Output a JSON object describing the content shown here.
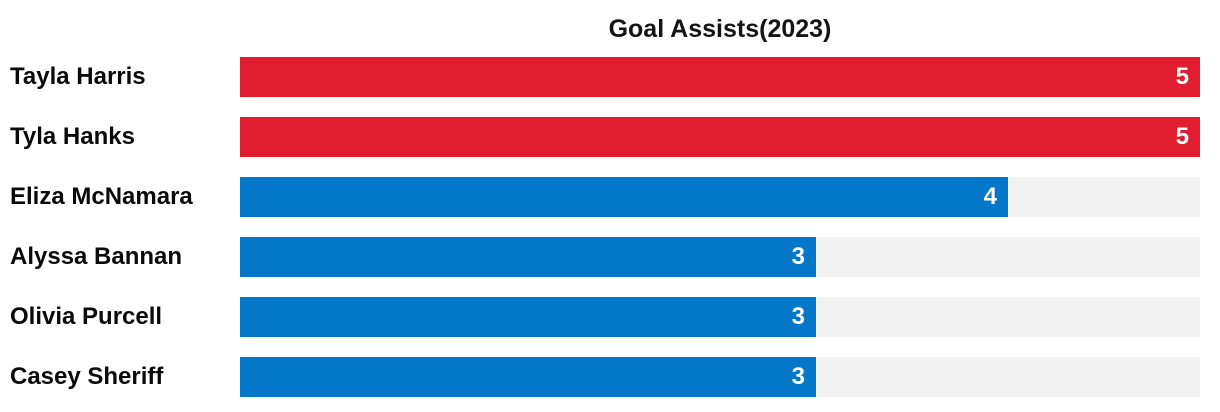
{
  "title": "Goal Assists(2023)",
  "chart_data": {
    "type": "bar",
    "orientation": "horizontal",
    "title": "Goal Assists(2023)",
    "categories": [
      "Tayla Harris",
      "Tyla Hanks",
      "Eliza McNamara",
      "Alyssa Bannan",
      "Olivia Purcell",
      "Casey Sheriff"
    ],
    "values": [
      5,
      5,
      4,
      3,
      3,
      3
    ],
    "bar_colors": [
      "#e01e2f",
      "#e01e2f",
      "#0577c8",
      "#0577c8",
      "#0577c8",
      "#0577c8"
    ],
    "value_label_color": "#ffffff",
    "track_color": "#f3f3f3",
    "xlabel": "",
    "ylabel": "",
    "xlim": [
      0,
      5
    ],
    "grid": false,
    "legend": false,
    "value_labels_shown": true
  }
}
